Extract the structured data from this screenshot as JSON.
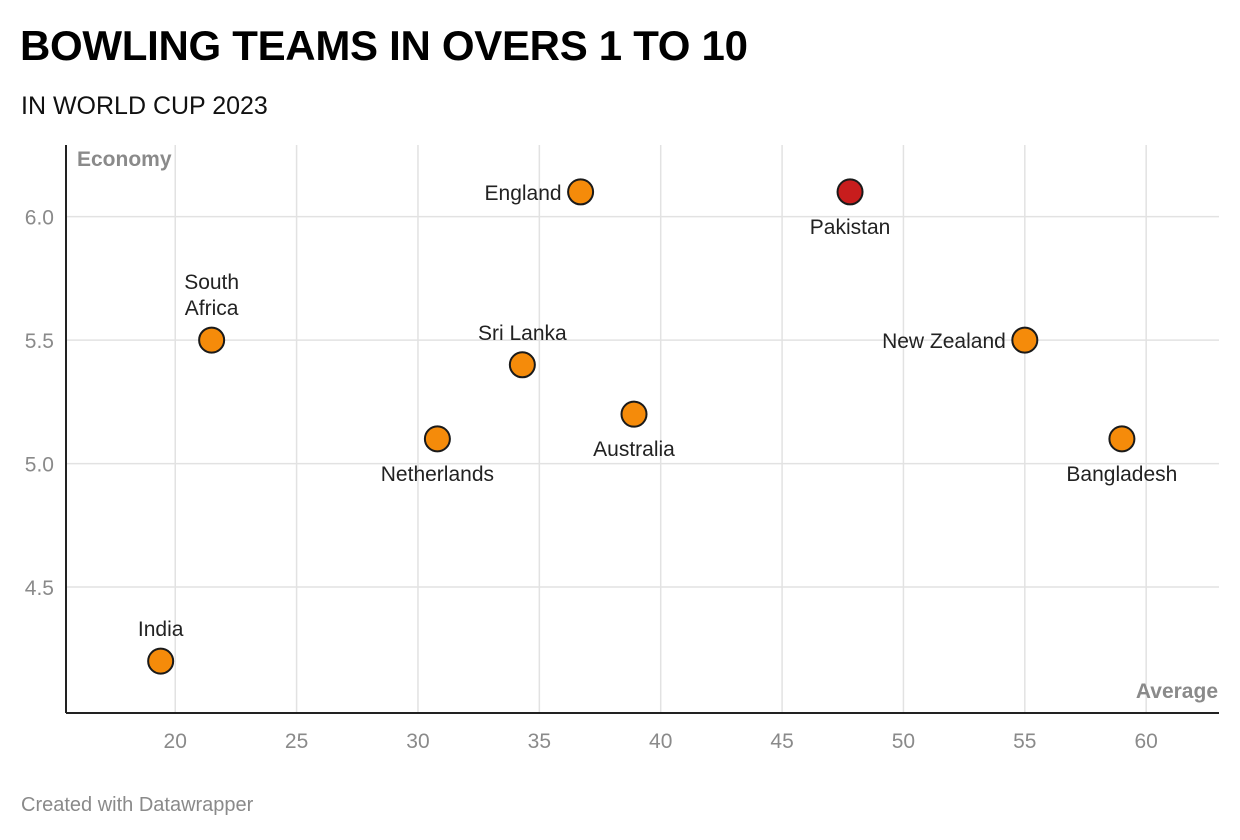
{
  "header": {
    "title": "BOWLING TEAMS IN OVERS 1 TO 10",
    "subtitle": "IN WORLD CUP 2023"
  },
  "footer": {
    "credit": "Created with Datawrapper"
  },
  "colors": {
    "default_point": "#f58b0a",
    "highlight_point": "#c81d1d",
    "grid": "#e2e2e2",
    "axis": "#222222"
  },
  "chart_data": {
    "type": "scatter",
    "xlabel": "Average",
    "ylabel": "Economy",
    "xlim": [
      15.5,
      63
    ],
    "ylim": [
      3.99,
      6.29
    ],
    "x_ticks": [
      20,
      25,
      30,
      35,
      40,
      45,
      50,
      55,
      60
    ],
    "y_ticks": [
      4.5,
      5.0,
      5.5,
      6.0
    ],
    "y_tick_labels": [
      "4.5",
      "5.0",
      "5.5",
      "6.0"
    ],
    "grid": true,
    "points": [
      {
        "name": "England",
        "x": 36.7,
        "y": 6.1,
        "highlight": false,
        "label_pos": "left"
      },
      {
        "name": "Pakistan",
        "x": 47.8,
        "y": 6.1,
        "highlight": true,
        "label_pos": "below"
      },
      {
        "name": "South Africa",
        "x": 21.5,
        "y": 5.5,
        "highlight": false,
        "label_pos": "above2",
        "label_lines": [
          "South",
          "Africa"
        ]
      },
      {
        "name": "Sri Lanka",
        "x": 34.3,
        "y": 5.4,
        "highlight": false,
        "label_pos": "above"
      },
      {
        "name": "New Zealand",
        "x": 55.0,
        "y": 5.5,
        "highlight": false,
        "label_pos": "left"
      },
      {
        "name": "Australia",
        "x": 38.9,
        "y": 5.2,
        "highlight": false,
        "label_pos": "below"
      },
      {
        "name": "Netherlands",
        "x": 30.8,
        "y": 5.1,
        "highlight": false,
        "label_pos": "below"
      },
      {
        "name": "Bangladesh",
        "x": 59.0,
        "y": 5.1,
        "highlight": false,
        "label_pos": "below"
      },
      {
        "name": "India",
        "x": 19.4,
        "y": 4.2,
        "highlight": false,
        "label_pos": "above"
      }
    ]
  }
}
